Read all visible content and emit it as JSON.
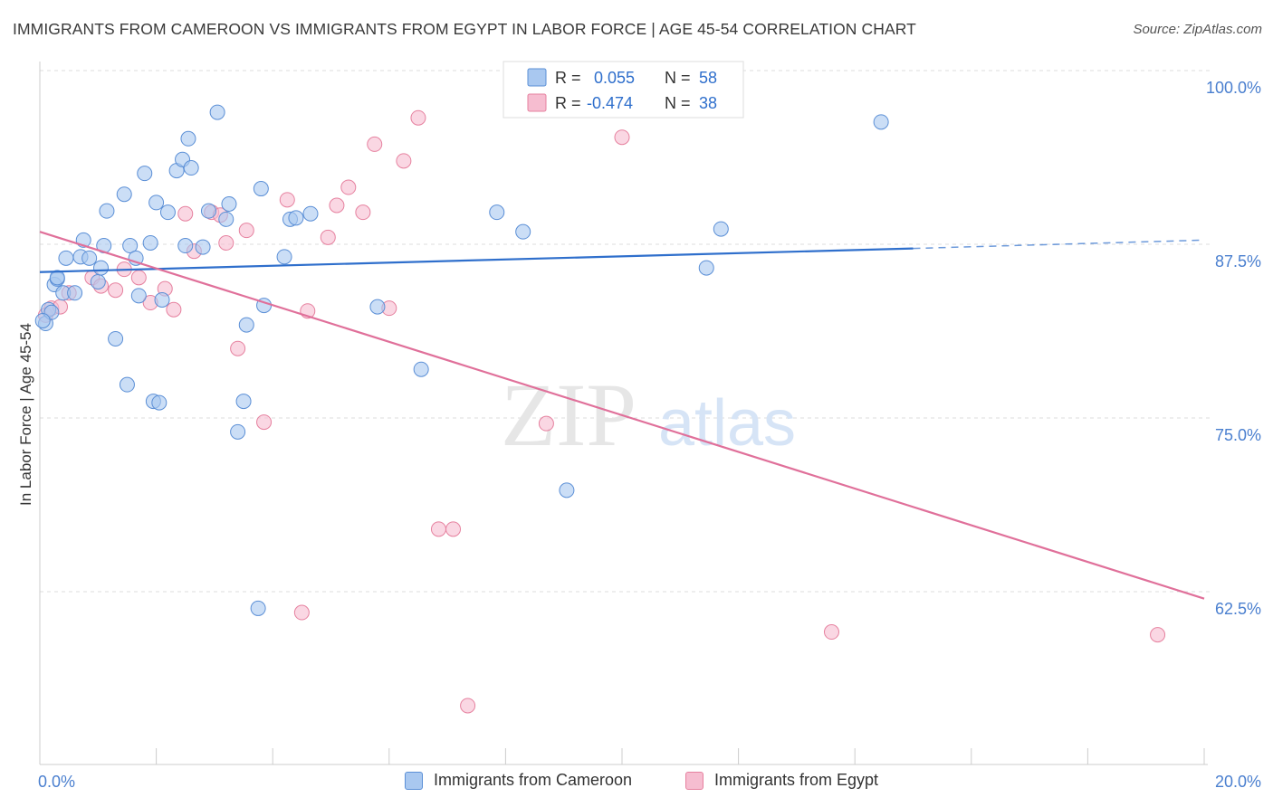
{
  "title": "IMMIGRANTS FROM CAMEROON VS IMMIGRANTS FROM EGYPT IN LABOR FORCE | AGE 45-54 CORRELATION CHART",
  "source": "Source: ZipAtlas.com",
  "watermark": {
    "zip": "ZIP",
    "atlas": "atlas"
  },
  "colors": {
    "cameroon_fill": "#a9c8f0",
    "cameroon_stroke": "#5b8fd6",
    "cameroon_line": "#2f6fcc",
    "egypt_fill": "#f6bdd0",
    "egypt_stroke": "#e6819f",
    "egypt_line": "#e0709a",
    "tick_label": "#4a7fcf",
    "grid": "#dcdcdc"
  },
  "stats_legend": [
    {
      "r_label": "R =",
      "r_value": "0.055",
      "n_label": "N =",
      "n_value": "58"
    },
    {
      "r_label": "R =",
      "r_value": "-0.474",
      "n_label": "N =",
      "n_value": "38"
    }
  ],
  "chart_data": {
    "type": "scatter",
    "title": "IMMIGRANTS FROM CAMEROON VS IMMIGRANTS FROM EGYPT IN LABOR FORCE | AGE 45-54 CORRELATION CHART",
    "xlabel": "",
    "ylabel": "In Labor Force | Age 45-54",
    "xlim": [
      0,
      20
    ],
    "ylim": [
      52,
      102
    ],
    "x_tick_labels": [
      "0.0%",
      "20.0%"
    ],
    "y_ticks": [
      62.5,
      75.0,
      87.5,
      100.0
    ],
    "y_tick_labels": [
      "62.5%",
      "75.0%",
      "87.5%",
      "100.0%"
    ],
    "grid": true,
    "legend_position": "bottom",
    "series": [
      {
        "name": "Immigrants from Cameroon",
        "trend": {
          "x": [
            0.0,
            15.0,
            20.0
          ],
          "y": [
            85.5,
            87.2,
            87.8
          ],
          "dashed_from_x": 15.0
        },
        "points": [
          [
            0.1,
            81.8
          ],
          [
            0.15,
            82.8
          ],
          [
            0.2,
            82.6
          ],
          [
            0.25,
            84.6
          ],
          [
            0.3,
            85.0
          ],
          [
            0.4,
            84.0
          ],
          [
            0.45,
            86.5
          ],
          [
            0.6,
            84.0
          ],
          [
            0.7,
            86.6
          ],
          [
            0.75,
            87.8
          ],
          [
            0.85,
            86.5
          ],
          [
            1.0,
            84.8
          ],
          [
            1.05,
            85.8
          ],
          [
            1.1,
            87.4
          ],
          [
            1.15,
            89.9
          ],
          [
            1.3,
            80.7
          ],
          [
            1.45,
            91.1
          ],
          [
            1.5,
            77.4
          ],
          [
            1.55,
            87.4
          ],
          [
            1.65,
            86.5
          ],
          [
            1.7,
            83.8
          ],
          [
            1.8,
            92.6
          ],
          [
            1.9,
            87.6
          ],
          [
            1.95,
            76.2
          ],
          [
            2.0,
            90.5
          ],
          [
            2.1,
            83.5
          ],
          [
            2.2,
            89.8
          ],
          [
            2.35,
            92.8
          ],
          [
            2.45,
            93.6
          ],
          [
            2.5,
            87.4
          ],
          [
            2.55,
            95.1
          ],
          [
            2.6,
            93.0
          ],
          [
            2.8,
            87.3
          ],
          [
            2.9,
            89.9
          ],
          [
            3.05,
            97.0
          ],
          [
            3.2,
            89.3
          ],
          [
            3.25,
            90.4
          ],
          [
            3.4,
            74.0
          ],
          [
            3.5,
            76.2
          ],
          [
            3.55,
            81.7
          ],
          [
            3.75,
            61.3
          ],
          [
            3.8,
            91.5
          ],
          [
            3.85,
            83.1
          ],
          [
            4.2,
            86.6
          ],
          [
            4.3,
            89.3
          ],
          [
            4.4,
            89.4
          ],
          [
            4.65,
            89.7
          ],
          [
            5.8,
            83.0
          ],
          [
            6.55,
            78.5
          ],
          [
            7.85,
            89.8
          ],
          [
            8.3,
            88.4
          ],
          [
            9.05,
            69.8
          ],
          [
            11.45,
            85.8
          ],
          [
            11.7,
            88.6
          ],
          [
            14.45,
            96.3
          ],
          [
            0.05,
            82.0
          ],
          [
            0.3,
            85.1
          ],
          [
            2.05,
            76.1
          ]
        ]
      },
      {
        "name": "Immigrants from Egypt",
        "trend": {
          "x": [
            0.0,
            20.0
          ],
          "y": [
            88.4,
            62.0
          ]
        },
        "points": [
          [
            0.1,
            82.4
          ],
          [
            0.2,
            82.9
          ],
          [
            0.35,
            83.0
          ],
          [
            0.5,
            84.0
          ],
          [
            0.9,
            85.1
          ],
          [
            1.05,
            84.5
          ],
          [
            1.3,
            84.2
          ],
          [
            1.45,
            85.7
          ],
          [
            1.7,
            85.1
          ],
          [
            1.9,
            83.3
          ],
          [
            2.15,
            84.3
          ],
          [
            2.3,
            82.8
          ],
          [
            2.5,
            89.7
          ],
          [
            2.65,
            87.0
          ],
          [
            2.95,
            89.8
          ],
          [
            3.1,
            89.6
          ],
          [
            3.2,
            87.6
          ],
          [
            3.4,
            80.0
          ],
          [
            3.55,
            88.5
          ],
          [
            3.85,
            74.7
          ],
          [
            4.25,
            90.7
          ],
          [
            4.5,
            61.0
          ],
          [
            4.6,
            82.7
          ],
          [
            4.95,
            88.0
          ],
          [
            5.1,
            90.3
          ],
          [
            5.3,
            91.6
          ],
          [
            5.55,
            89.8
          ],
          [
            5.75,
            94.7
          ],
          [
            6.0,
            82.9
          ],
          [
            6.25,
            93.5
          ],
          [
            6.5,
            96.6
          ],
          [
            6.85,
            67.0
          ],
          [
            7.1,
            67.0
          ],
          [
            7.35,
            54.3
          ],
          [
            8.7,
            74.6
          ],
          [
            10.0,
            95.2
          ],
          [
            13.6,
            59.6
          ],
          [
            19.2,
            59.4
          ]
        ]
      }
    ]
  },
  "axis": {
    "x_left": "0.0%",
    "x_right": "20.0%",
    "y_label": "In Labor Force | Age 45-54"
  },
  "legend": [
    {
      "label": "Immigrants from Cameroon"
    },
    {
      "label": "Immigrants from Egypt"
    }
  ]
}
